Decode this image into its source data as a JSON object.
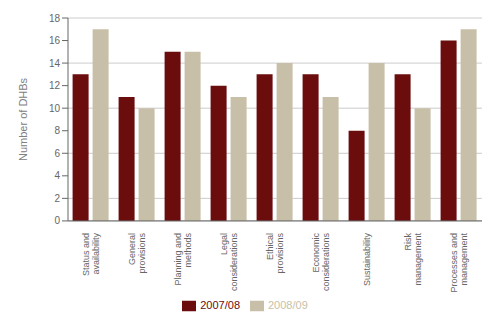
{
  "chart_data": {
    "type": "bar",
    "categories": [
      "Status and\navailability",
      "General\nprovisions",
      "Planning and\nmethods",
      "Legal\nconsiderations",
      "Ethical\nprovisions",
      "Economic\nconsiderations",
      "Sustainability",
      "Risk\nmanagement",
      "Processes and\nmanagement"
    ],
    "series": [
      {
        "name": "2007/08",
        "color": "#6b0d0d",
        "values": [
          13,
          11,
          15,
          12,
          13,
          13,
          8,
          13,
          16
        ]
      },
      {
        "name": "2008/09",
        "color": "#c8bfa8",
        "values": [
          17,
          10,
          15,
          11,
          14,
          11,
          14,
          10,
          17
        ]
      }
    ],
    "ylabel": "Number of DHBs",
    "ylim": [
      0,
      18
    ],
    "yticks": [
      0,
      2,
      4,
      6,
      8,
      10,
      12,
      14,
      16,
      18
    ],
    "grid": true,
    "legend": "bottom"
  }
}
